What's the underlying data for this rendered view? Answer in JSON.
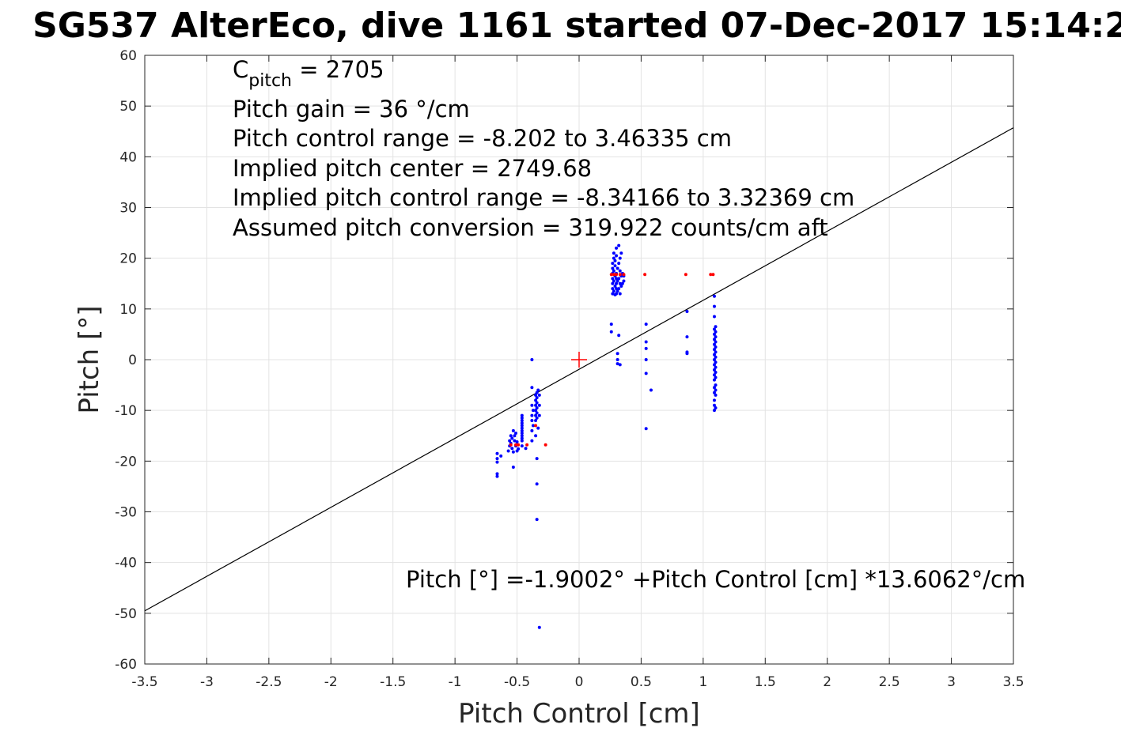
{
  "chart_data": {
    "type": "scatter",
    "title": "SG537 AlterEco, dive 1161 started 07-Dec-2017 15:14:2",
    "xlabel": "Pitch Control [cm]",
    "ylabel": "Pitch [°]",
    "xlim": [
      -3.5,
      3.5
    ],
    "ylim": [
      -60,
      60
    ],
    "grid": true,
    "xticks": [
      "-3.5",
      "-3",
      "-2.5",
      "-2",
      "-1.5",
      "-1",
      "-0.5",
      "0",
      "0.5",
      "1",
      "1.5",
      "2",
      "2.5",
      "3",
      "3.5"
    ],
    "yticks": [
      "60",
      "50",
      "40",
      "30",
      "20",
      "10",
      "0",
      "-10",
      "-20",
      "-30",
      "-40",
      "-50",
      "-60"
    ],
    "annotations": {
      "c_pitch_main": "C",
      "c_pitch_sub": "pitch",
      "c_pitch_value": " = 2705",
      "pitch_gain": "Pitch gain = 36 °/cm",
      "control_range": "Pitch control range = -8.202 to 3.46335 cm",
      "implied_center": "Implied pitch center = 2749.68",
      "implied_range": "Implied pitch control range = -8.34166 to 3.32369 cm",
      "conversion": "Assumed pitch conversion = 319.922 counts/cm aft",
      "fit_equation": "Pitch [°] =-1.9002° +Pitch Control [cm] *13.6062°/cm"
    },
    "fit_line": {
      "intercept": -1.9002,
      "slope": 13.6062,
      "color": "#000000"
    },
    "center_marker": {
      "x": 0,
      "y": 0,
      "color": "#ff0000"
    },
    "series": [
      {
        "color": "#0000ff",
        "points": [
          [
            -0.66,
            -18.5
          ],
          [
            -0.66,
            -19.5
          ],
          [
            -0.66,
            -20.2
          ],
          [
            -0.66,
            -22.5
          ],
          [
            -0.66,
            -23.0
          ],
          [
            -0.63,
            -19.0
          ],
          [
            -0.57,
            -18.0
          ],
          [
            -0.56,
            -17.0
          ],
          [
            -0.56,
            -16.0
          ],
          [
            -0.55,
            -15.0
          ],
          [
            -0.55,
            -16.5
          ],
          [
            -0.54,
            -15.5
          ],
          [
            -0.54,
            -17.5
          ],
          [
            -0.53,
            -14.0
          ],
          [
            -0.53,
            -18.2
          ],
          [
            -0.53,
            -21.2
          ],
          [
            -0.52,
            -16.0
          ],
          [
            -0.52,
            -15.0
          ],
          [
            -0.51,
            -17.0
          ],
          [
            -0.51,
            -14.5
          ],
          [
            -0.5,
            -18.0
          ],
          [
            -0.5,
            -16.2
          ],
          [
            -0.49,
            -17.6
          ],
          [
            -0.46,
            -11.0
          ],
          [
            -0.46,
            -12.0
          ],
          [
            -0.46,
            -13.0
          ],
          [
            -0.46,
            -14.0
          ],
          [
            -0.46,
            -15.0
          ],
          [
            -0.46,
            -16.0
          ],
          [
            -0.46,
            -17.0
          ],
          [
            -0.46,
            -11.5
          ],
          [
            -0.46,
            -12.5
          ],
          [
            -0.46,
            -13.5
          ],
          [
            -0.46,
            -14.5
          ],
          [
            -0.46,
            -15.5
          ],
          [
            -0.43,
            -17.5
          ],
          [
            -0.38,
            0.0
          ],
          [
            -0.38,
            -5.5
          ],
          [
            -0.38,
            -9.0
          ],
          [
            -0.38,
            -11.0
          ],
          [
            -0.38,
            -12.0
          ],
          [
            -0.38,
            -14.0
          ],
          [
            -0.38,
            -16.0
          ],
          [
            -0.37,
            -10.0
          ],
          [
            -0.37,
            -13.0
          ],
          [
            -0.35,
            -7.0
          ],
          [
            -0.35,
            -8.0
          ],
          [
            -0.35,
            -9.0
          ],
          [
            -0.35,
            -10.0
          ],
          [
            -0.35,
            -11.0
          ],
          [
            -0.35,
            -12.0
          ],
          [
            -0.35,
            -15.0
          ],
          [
            -0.34,
            -6.5
          ],
          [
            -0.34,
            -7.5
          ],
          [
            -0.34,
            -8.5
          ],
          [
            -0.34,
            -9.5
          ],
          [
            -0.34,
            -10.5
          ],
          [
            -0.34,
            -11.5
          ],
          [
            -0.34,
            -19.5
          ],
          [
            -0.34,
            -24.5
          ],
          [
            -0.34,
            -31.5
          ],
          [
            -0.33,
            -6.0
          ],
          [
            -0.33,
            -13.5
          ],
          [
            -0.32,
            -7.0
          ],
          [
            -0.32,
            -9.0
          ],
          [
            -0.32,
            -11.0
          ],
          [
            -0.32,
            -52.8
          ],
          [
            0.26,
            7.0
          ],
          [
            0.26,
            5.5
          ],
          [
            0.27,
            13.0
          ],
          [
            0.27,
            14.0
          ],
          [
            0.27,
            15.0
          ],
          [
            0.27,
            16.0
          ],
          [
            0.27,
            17.0
          ],
          [
            0.27,
            18.0
          ],
          [
            0.27,
            19.0
          ],
          [
            0.28,
            20.0
          ],
          [
            0.28,
            21.0
          ],
          [
            0.28,
            13.5
          ],
          [
            0.28,
            15.5
          ],
          [
            0.28,
            17.5
          ],
          [
            0.29,
            12.8
          ],
          [
            0.29,
            14.5
          ],
          [
            0.29,
            16.5
          ],
          [
            0.29,
            18.5
          ],
          [
            0.29,
            19.5
          ],
          [
            0.3,
            22.0
          ],
          [
            0.3,
            13.0
          ],
          [
            0.3,
            15.0
          ],
          [
            0.3,
            17.0
          ],
          [
            0.3,
            20.5
          ],
          [
            0.3,
            14.0
          ],
          [
            0.3,
            16.0
          ],
          [
            0.31,
            13.5
          ],
          [
            0.31,
            18.0
          ],
          [
            0.31,
            15.5
          ],
          [
            0.31,
            0.0
          ],
          [
            0.31,
            1.2
          ],
          [
            0.31,
            -0.8
          ],
          [
            0.32,
            14.0
          ],
          [
            0.32,
            16.0
          ],
          [
            0.32,
            19.0
          ],
          [
            0.32,
            22.5
          ],
          [
            0.32,
            4.8
          ],
          [
            0.33,
            13.0
          ],
          [
            0.33,
            15.0
          ],
          [
            0.33,
            17.5
          ],
          [
            0.33,
            20.0
          ],
          [
            0.33,
            -1.0
          ],
          [
            0.34,
            14.5
          ],
          [
            0.34,
            16.5
          ],
          [
            0.34,
            21.0
          ],
          [
            0.35,
            15.0
          ],
          [
            0.35,
            17.0
          ],
          [
            0.36,
            15.5
          ],
          [
            0.36,
            16.5
          ],
          [
            0.54,
            7.0
          ],
          [
            0.54,
            3.5
          ],
          [
            0.54,
            2.2
          ],
          [
            0.54,
            0.0
          ],
          [
            0.54,
            -2.7
          ],
          [
            0.54,
            -13.6
          ],
          [
            0.58,
            -6.0
          ],
          [
            0.87,
            9.5
          ],
          [
            0.87,
            4.5
          ],
          [
            0.87,
            1.5
          ],
          [
            0.87,
            1.2
          ],
          [
            1.09,
            12.5
          ],
          [
            1.09,
            10.5
          ],
          [
            1.09,
            8.5
          ],
          [
            1.09,
            6.0
          ],
          [
            1.09,
            5.0
          ],
          [
            1.09,
            4.0
          ],
          [
            1.09,
            3.0
          ],
          [
            1.09,
            2.0
          ],
          [
            1.09,
            1.0
          ],
          [
            1.09,
            0.0
          ],
          [
            1.09,
            -1.0
          ],
          [
            1.09,
            -2.0
          ],
          [
            1.09,
            -3.0
          ],
          [
            1.09,
            -4.0
          ],
          [
            1.09,
            -5.5
          ],
          [
            1.09,
            -6.5
          ],
          [
            1.09,
            -8.0
          ],
          [
            1.09,
            -9.0
          ],
          [
            1.09,
            -10.0
          ],
          [
            1.1,
            6.5
          ],
          [
            1.1,
            5.5
          ],
          [
            1.1,
            4.5
          ],
          [
            1.1,
            3.5
          ],
          [
            1.1,
            2.5
          ],
          [
            1.1,
            1.5
          ],
          [
            1.1,
            0.5
          ],
          [
            1.1,
            -0.5
          ],
          [
            1.1,
            -1.5
          ],
          [
            1.1,
            -2.5
          ],
          [
            1.1,
            -3.5
          ],
          [
            1.1,
            -5.0
          ],
          [
            1.1,
            -6.0
          ],
          [
            1.1,
            -7.0
          ],
          [
            1.1,
            -9.5
          ]
        ]
      },
      {
        "color": "#ff0000",
        "points": [
          [
            -0.55,
            -16.8
          ],
          [
            -0.51,
            -16.8
          ],
          [
            -0.49,
            -16.8
          ],
          [
            -0.42,
            -16.8
          ],
          [
            -0.27,
            -16.8
          ],
          [
            -0.35,
            -13.0
          ],
          [
            0.26,
            16.8
          ],
          [
            0.28,
            16.8
          ],
          [
            0.3,
            16.8
          ],
          [
            0.33,
            16.8
          ],
          [
            0.36,
            16.8
          ],
          [
            0.53,
            16.8
          ],
          [
            0.86,
            16.8
          ],
          [
            1.06,
            16.8
          ],
          [
            1.08,
            16.8
          ]
        ]
      }
    ]
  }
}
